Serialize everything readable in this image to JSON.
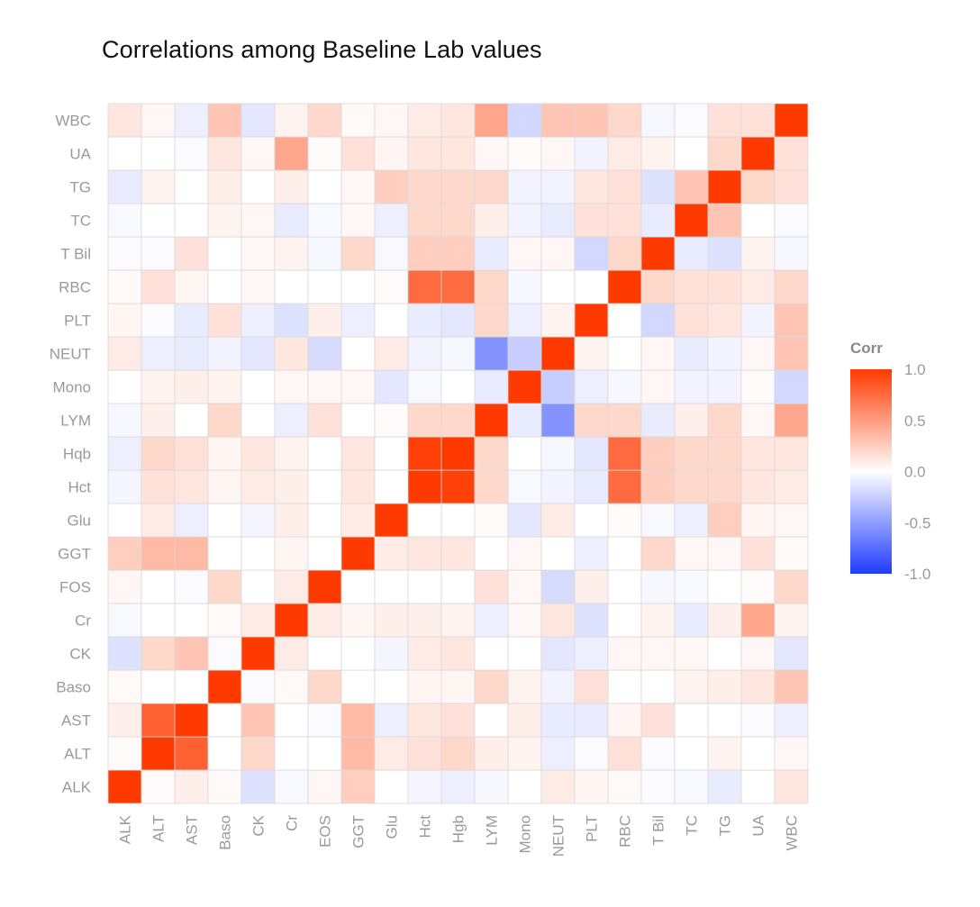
{
  "chart_data": {
    "type": "heatmap",
    "title": "Correlations among Baseline Lab values",
    "xlabel": "",
    "ylabel": "",
    "labels": [
      "ALK",
      "ALT",
      "AST",
      "Baso",
      "CK",
      "Cr",
      "EOS",
      "GGT",
      "Glu",
      "Hct",
      "Hgb",
      "LYM",
      "Mono",
      "NEUT",
      "PLT",
      "RBC",
      "T Bil",
      "TC",
      "TG",
      "UA",
      "WBC"
    ],
    "y_tick_labels": [
      "ALK",
      "ALT",
      "AST",
      "Baso",
      "CK",
      "Cr",
      "FOS",
      "GGT",
      "Glu",
      "Hct",
      "Hqb",
      "LYM",
      "Mono",
      "NEUT",
      "PLT",
      "RBC",
      "T Bil",
      "TC",
      "TG",
      "UA",
      "WBC"
    ],
    "x_tick_labels": [
      "ALK",
      "ALT",
      "AST",
      "Baso",
      "CK",
      "Cr",
      "EOS",
      "GGT",
      "Glu",
      "Hct",
      "Hgb",
      "LYM",
      "Mono",
      "NEUT",
      "PLT",
      "RBC",
      "T Bil",
      "TC",
      "TG",
      "UA",
      "WBC"
    ],
    "matrix": [
      [
        1.0,
        0.02,
        0.08,
        0.03,
        -0.15,
        -0.03,
        0.04,
        0.25,
        0.0,
        -0.05,
        -0.08,
        -0.04,
        0.0,
        0.1,
        0.05,
        0.03,
        -0.02,
        -0.03,
        -0.1,
        0.0,
        0.12
      ],
      [
        0.02,
        1.0,
        0.8,
        0.0,
        0.2,
        0.0,
        0.0,
        0.35,
        0.1,
        0.15,
        0.2,
        0.08,
        0.06,
        -0.08,
        -0.02,
        0.15,
        -0.02,
        0.0,
        0.06,
        0.0,
        0.04
      ],
      [
        0.08,
        0.8,
        1.0,
        0.0,
        0.3,
        0.0,
        -0.02,
        0.35,
        -0.08,
        0.12,
        0.15,
        0.0,
        0.08,
        -0.1,
        -0.1,
        0.05,
        0.15,
        0.0,
        0.0,
        -0.02,
        -0.08
      ],
      [
        0.03,
        0.0,
        0.0,
        1.0,
        -0.02,
        0.03,
        0.2,
        0.0,
        0.0,
        0.05,
        0.05,
        0.2,
        0.06,
        -0.06,
        0.15,
        0.0,
        0.0,
        0.06,
        0.08,
        0.12,
        0.3
      ],
      [
        -0.15,
        0.2,
        0.3,
        -0.02,
        1.0,
        0.1,
        0.0,
        0.0,
        -0.05,
        0.1,
        0.12,
        0.0,
        0.0,
        -0.12,
        -0.08,
        0.04,
        0.04,
        0.04,
        0.0,
        0.04,
        -0.12
      ],
      [
        -0.03,
        0.0,
        0.0,
        0.03,
        0.1,
        1.0,
        0.1,
        0.05,
        0.08,
        0.08,
        0.06,
        -0.08,
        0.04,
        0.12,
        -0.15,
        0.0,
        0.06,
        -0.1,
        0.08,
        0.45,
        0.06
      ],
      [
        0.04,
        0.0,
        -0.02,
        0.2,
        0.0,
        0.1,
        1.0,
        0.0,
        0.0,
        0.0,
        0.0,
        0.15,
        0.04,
        -0.18,
        0.08,
        0.0,
        -0.04,
        -0.03,
        0.0,
        0.02,
        0.2
      ],
      [
        0.25,
        0.35,
        0.35,
        0.0,
        0.0,
        0.05,
        0.0,
        1.0,
        0.1,
        0.12,
        0.12,
        0.0,
        0.04,
        0.0,
        -0.08,
        0.0,
        0.2,
        0.04,
        0.04,
        0.15,
        0.03
      ],
      [
        0.0,
        0.1,
        -0.08,
        0.0,
        -0.05,
        0.08,
        0.0,
        0.1,
        1.0,
        0.0,
        0.0,
        0.02,
        -0.12,
        0.1,
        0.0,
        0.02,
        -0.03,
        -0.08,
        0.25,
        0.05,
        0.04
      ],
      [
        -0.05,
        0.15,
        0.12,
        0.05,
        0.1,
        0.08,
        0.0,
        0.12,
        0.0,
        1.0,
        0.97,
        0.2,
        -0.03,
        -0.06,
        -0.1,
        0.75,
        0.25,
        0.2,
        0.2,
        0.12,
        0.1
      ],
      [
        -0.08,
        0.2,
        0.15,
        0.05,
        0.12,
        0.06,
        0.0,
        0.12,
        0.0,
        0.97,
        1.0,
        0.2,
        0.0,
        -0.04,
        -0.12,
        0.75,
        0.25,
        0.2,
        0.2,
        0.12,
        0.12
      ],
      [
        -0.04,
        0.08,
        0.0,
        0.2,
        0.0,
        -0.08,
        0.15,
        0.0,
        0.02,
        0.2,
        0.2,
        1.0,
        -0.1,
        -0.55,
        0.2,
        0.2,
        -0.1,
        0.08,
        0.2,
        0.04,
        0.45
      ],
      [
        0.0,
        0.06,
        0.08,
        0.06,
        0.0,
        0.04,
        0.04,
        0.04,
        -0.12,
        -0.03,
        0.0,
        -0.1,
        1.0,
        -0.25,
        -0.08,
        -0.04,
        0.04,
        -0.06,
        -0.06,
        0.02,
        -0.2
      ],
      [
        0.1,
        -0.08,
        -0.1,
        -0.06,
        -0.12,
        0.12,
        -0.18,
        0.0,
        0.1,
        -0.06,
        -0.04,
        -0.55,
        -0.25,
        1.0,
        0.06,
        0.0,
        0.04,
        -0.1,
        -0.06,
        0.04,
        0.3
      ],
      [
        0.05,
        -0.02,
        -0.1,
        0.15,
        -0.08,
        -0.15,
        0.08,
        -0.08,
        0.0,
        -0.1,
        -0.12,
        0.2,
        -0.08,
        0.06,
        1.0,
        0.0,
        -0.2,
        0.15,
        0.12,
        -0.06,
        0.3
      ],
      [
        0.03,
        0.15,
        0.05,
        0.0,
        0.04,
        0.0,
        0.0,
        0.0,
        0.02,
        0.75,
        0.75,
        0.2,
        -0.04,
        0.0,
        0.0,
        1.0,
        0.2,
        0.15,
        0.15,
        0.1,
        0.2
      ],
      [
        -0.02,
        -0.02,
        0.15,
        0.0,
        0.04,
        0.06,
        -0.04,
        0.2,
        -0.03,
        0.25,
        0.25,
        -0.1,
        0.04,
        0.04,
        -0.2,
        0.2,
        1.0,
        -0.1,
        -0.15,
        0.06,
        -0.04
      ],
      [
        -0.03,
        0.0,
        0.0,
        0.06,
        0.04,
        -0.1,
        -0.03,
        0.04,
        -0.08,
        0.2,
        0.2,
        0.08,
        -0.06,
        -0.1,
        0.15,
        0.15,
        -0.1,
        1.0,
        0.3,
        0.0,
        -0.02
      ],
      [
        -0.1,
        0.06,
        0.0,
        0.08,
        0.0,
        0.08,
        0.0,
        0.04,
        0.25,
        0.2,
        0.2,
        0.2,
        -0.06,
        -0.06,
        0.12,
        0.15,
        -0.15,
        0.3,
        1.0,
        0.2,
        0.15
      ],
      [
        0.0,
        0.0,
        -0.02,
        0.12,
        0.04,
        0.45,
        0.02,
        0.15,
        0.05,
        0.12,
        0.12,
        0.04,
        0.02,
        0.04,
        -0.06,
        0.1,
        0.06,
        0.0,
        0.2,
        1.0,
        0.15
      ],
      [
        0.12,
        0.04,
        -0.08,
        0.3,
        -0.12,
        0.06,
        0.2,
        0.03,
        0.04,
        0.1,
        0.12,
        0.45,
        -0.2,
        0.3,
        0.3,
        0.2,
        -0.04,
        -0.02,
        0.15,
        0.15,
        1.0
      ]
    ],
    "legend": {
      "title": "Corr",
      "position": "right",
      "ticks": [
        "1.0",
        "0.5",
        "0.0",
        "-0.5",
        "-1.0"
      ],
      "tick_values": [
        1.0,
        0.5,
        0.0,
        -0.5,
        -1.0
      ],
      "range": [
        -1.0,
        1.0
      ]
    },
    "colors": {
      "negative": "#1f3bff",
      "zero": "#ffffff",
      "positive": "#ff3a00",
      "gridline": "#d9d9d9"
    },
    "grid": true
  }
}
